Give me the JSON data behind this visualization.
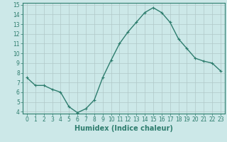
{
  "x": [
    0,
    1,
    2,
    3,
    4,
    5,
    6,
    7,
    8,
    9,
    10,
    11,
    12,
    13,
    14,
    15,
    16,
    17,
    18,
    19,
    20,
    21,
    22,
    23
  ],
  "y": [
    7.5,
    6.7,
    6.7,
    6.3,
    6.0,
    4.5,
    3.9,
    4.3,
    5.2,
    7.5,
    9.3,
    11.0,
    12.2,
    13.2,
    14.2,
    14.7,
    14.2,
    13.2,
    11.5,
    10.5,
    9.5,
    9.2,
    9.0,
    8.2
  ],
  "line_color": "#2e7d6e",
  "marker": "+",
  "marker_size": 3,
  "bg_color": "#cce8e8",
  "grid_color": "#b0c8c8",
  "xlabel": "Humidex (Indice chaleur)",
  "ylim": [
    4,
    15
  ],
  "xlim": [
    -0.5,
    23.5
  ],
  "yticks": [
    4,
    5,
    6,
    7,
    8,
    9,
    10,
    11,
    12,
    13,
    14,
    15
  ],
  "xticks": [
    0,
    1,
    2,
    3,
    4,
    5,
    6,
    7,
    8,
    9,
    10,
    11,
    12,
    13,
    14,
    15,
    16,
    17,
    18,
    19,
    20,
    21,
    22,
    23
  ],
  "tick_label_fontsize": 5.5,
  "xlabel_fontsize": 7,
  "line_width": 1.0,
  "marker_edge_width": 0.8
}
